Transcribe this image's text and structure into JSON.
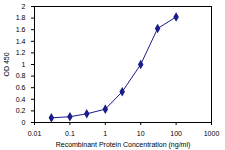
{
  "chart_data": {
    "type": "line",
    "x_label": "Recombinant Protein Concentration (ng/ml)",
    "y_label": "OD 450",
    "x": [
      0.03,
      0.1,
      0.3,
      1,
      3,
      10,
      30,
      100
    ],
    "values": [
      0.08,
      0.1,
      0.15,
      0.23,
      0.53,
      1.0,
      1.62,
      1.82
    ],
    "color": "#1c1c8a",
    "marker": "diamond",
    "log": "x",
    "grid": false,
    "xlim": [
      0.01,
      1000
    ],
    "xticks": [
      0.01,
      0.1,
      1,
      10,
      100,
      1000
    ],
    "ylim": [
      0,
      2
    ],
    "yticks": [
      0,
      0.2,
      0.4,
      0.6,
      0.8,
      1,
      1.2,
      1.4,
      1.6,
      1.8,
      2
    ]
  }
}
